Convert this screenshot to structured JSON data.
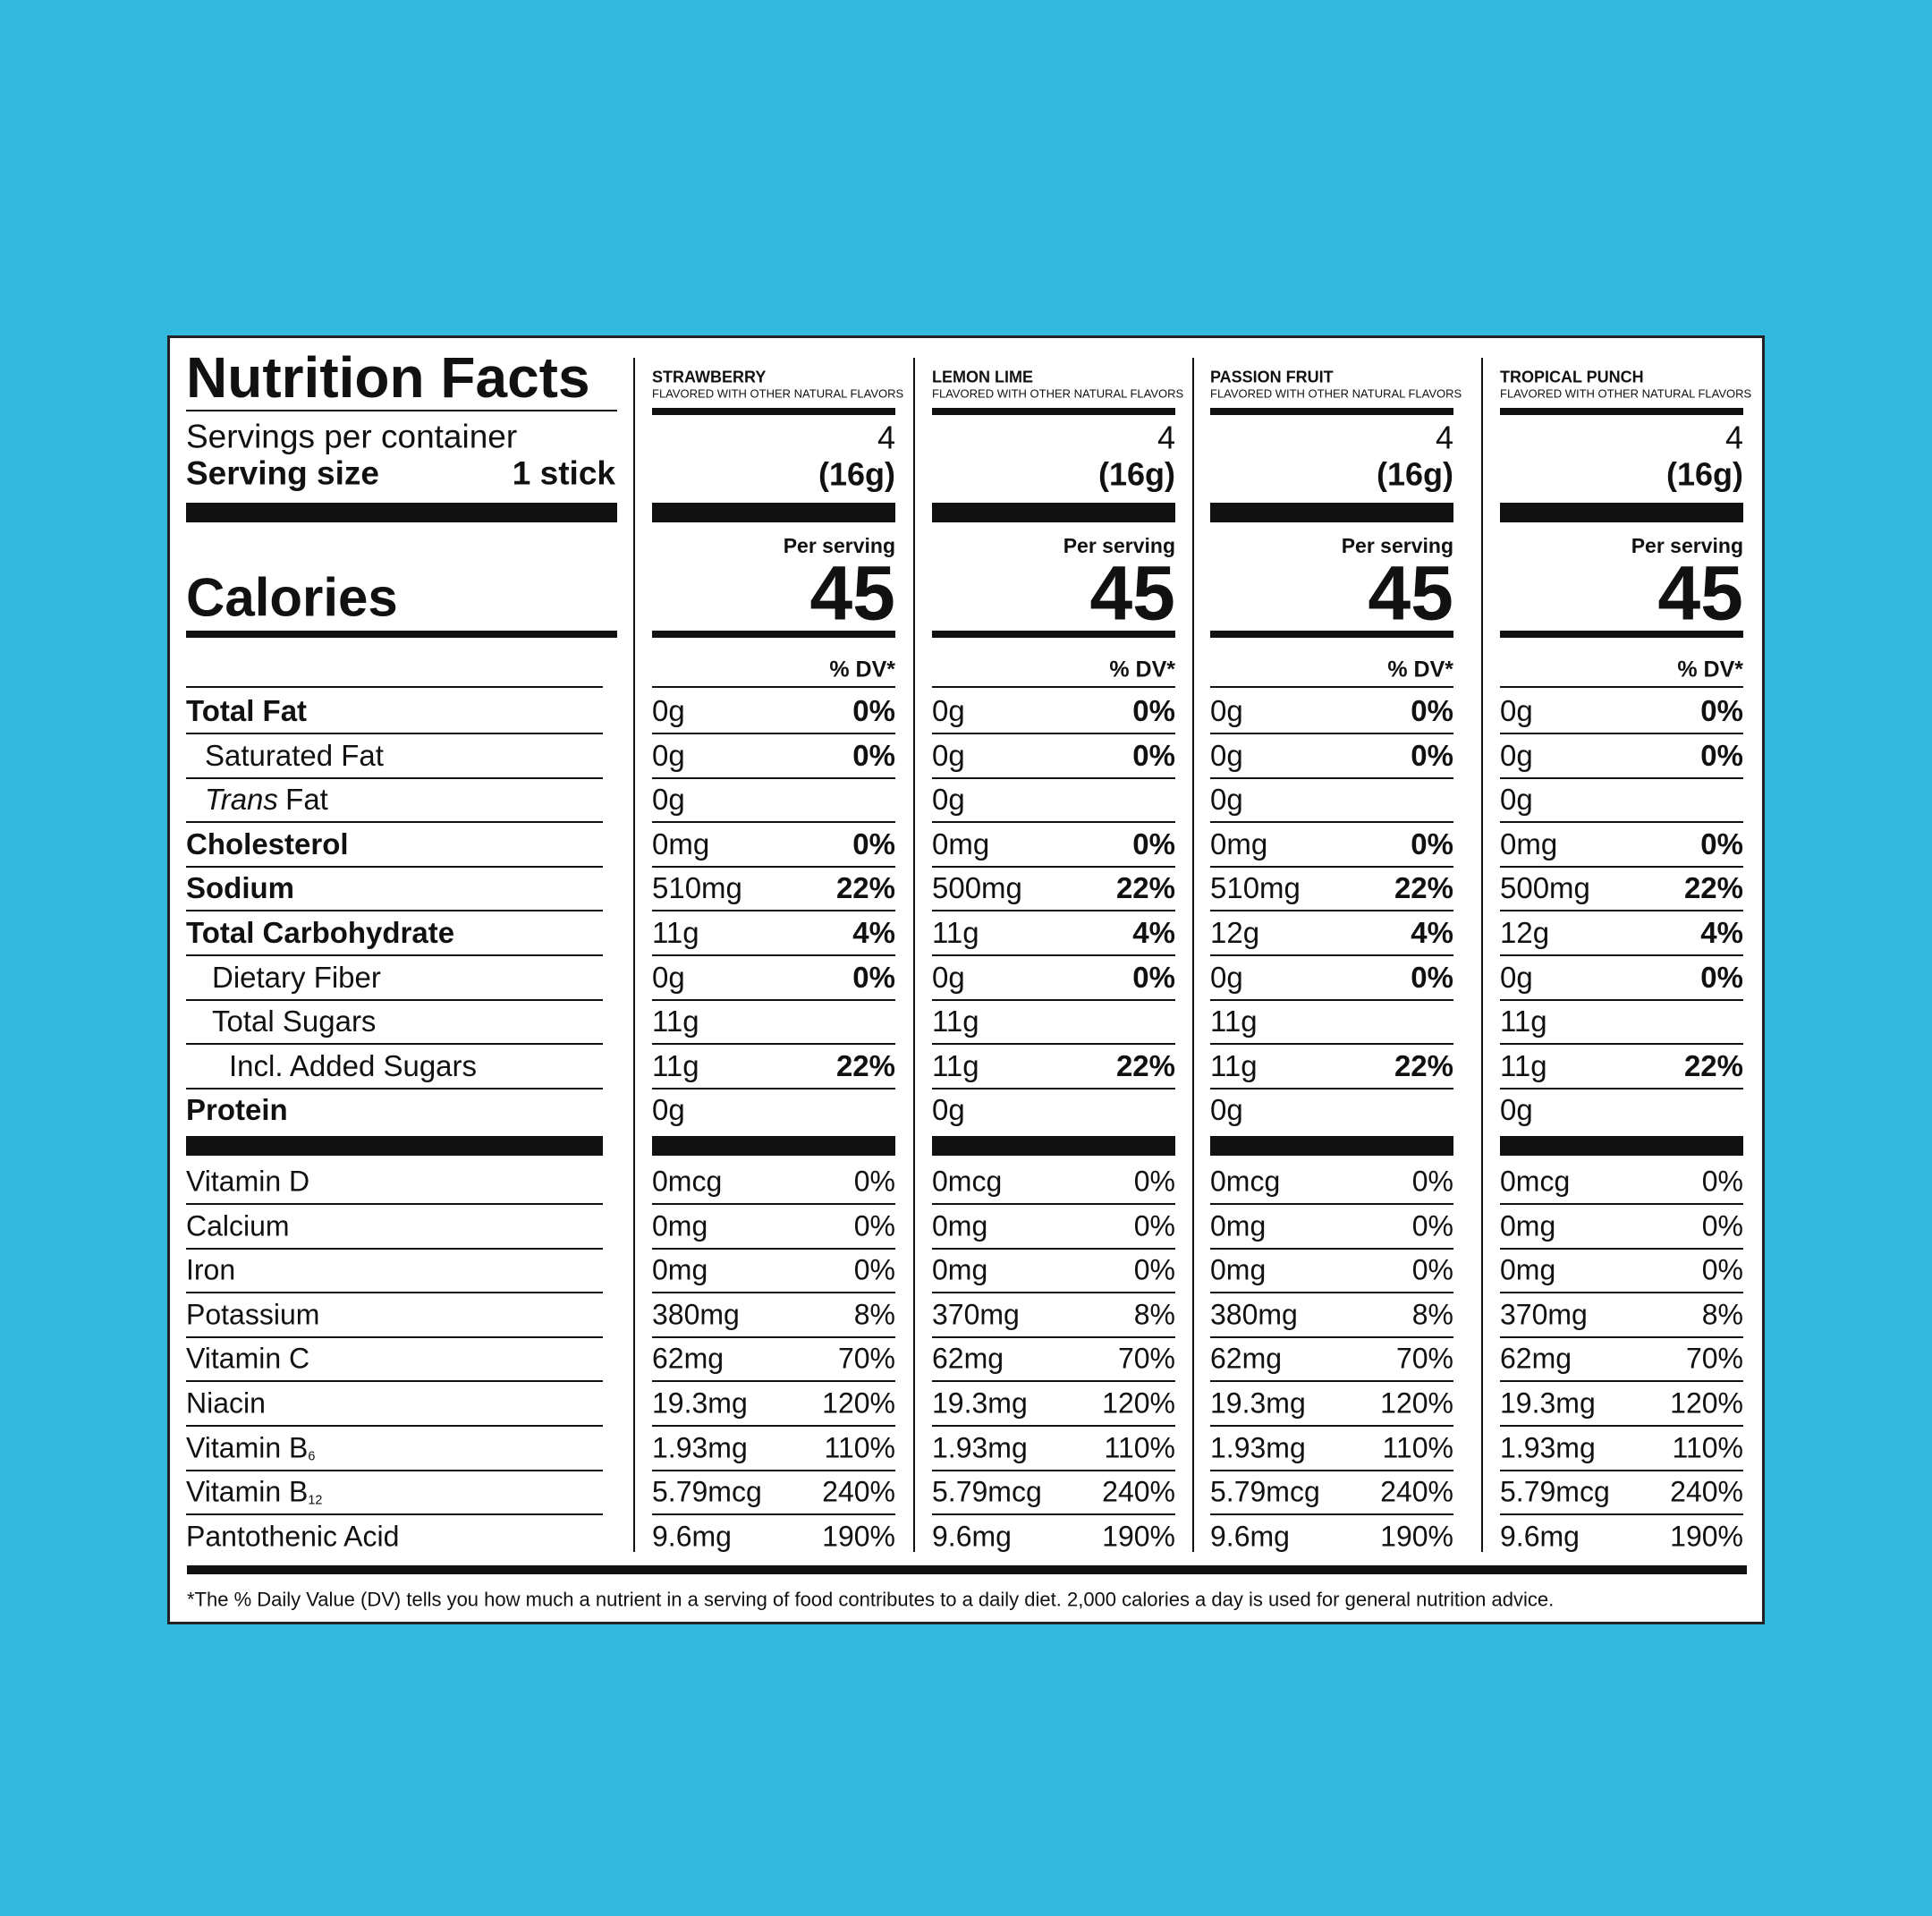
{
  "label": {
    "title": "Nutrition Facts",
    "servings_label": "Servings per container",
    "serving_size_label": "Serving size",
    "serving_size": "1 stick",
    "calories_label": "Calories",
    "nutrient_names": [
      "Total Fat",
      "Saturated Fat",
      {
        "italic": "Trans",
        "text": "Fat"
      },
      "Cholesterol",
      "Sodium",
      "Total Carbohydrate",
      "Dietary Fiber",
      "Total Sugars",
      "Incl. Added Sugars",
      "Protein"
    ],
    "vitamin_names": [
      "Vitamin D",
      "Calcium",
      "Iron",
      "Potassium",
      "Vitamin C",
      "Niacin",
      {
        "text": "Vitamin B",
        "sub": "6"
      },
      {
        "text": "Vitamin B",
        "sub": "12"
      },
      "Pantothenic Acid"
    ],
    "flavors": [
      {
        "name": "STRAWBERRY",
        "subtitle": "FLAVORED WITH OTHER NATURAL FLAVORS",
        "servings": "4",
        "weight": "(16g)",
        "per_serving": "Per serving",
        "calories": "45",
        "dv_header": "% DV*",
        "nutrients": [
          {
            "amount": "0g",
            "dv": "0%"
          },
          {
            "amount": "0g",
            "dv": "0%"
          },
          {
            "amount": "0g",
            "dv": null
          },
          {
            "amount": "0mg",
            "dv": "0%"
          },
          {
            "amount": "510mg",
            "dv": "22%"
          },
          {
            "amount": "11g",
            "dv": "4%"
          },
          {
            "amount": "0g",
            "dv": "0%"
          },
          {
            "amount": "11g",
            "dv": null
          },
          {
            "amount": "11g",
            "dv": "22%"
          },
          {
            "amount": "0g",
            "dv": null
          }
        ],
        "vitamins": [
          {
            "amount": "0mcg",
            "dv": "0%"
          },
          {
            "amount": "0mg",
            "dv": "0%"
          },
          {
            "amount": "0mg",
            "dv": "0%"
          },
          {
            "amount": "380mg",
            "dv": "8%"
          },
          {
            "amount": "62mg",
            "dv": "70%"
          },
          {
            "amount": "19.3mg",
            "dv": "120%"
          },
          {
            "amount": "1.93mg",
            "dv": "110%"
          },
          {
            "amount": "5.79mcg",
            "dv": "240%"
          },
          {
            "amount": "9.6mg",
            "dv": "190%"
          }
        ]
      },
      {
        "name": "LEMON LIME",
        "subtitle": "FLAVORED WITH OTHER NATURAL FLAVORS",
        "servings": "4",
        "weight": "(16g)",
        "per_serving": "Per serving",
        "calories": "45",
        "dv_header": "% DV*",
        "nutrients": [
          {
            "amount": "0g",
            "dv": "0%"
          },
          {
            "amount": "0g",
            "dv": "0%"
          },
          {
            "amount": "0g",
            "dv": null
          },
          {
            "amount": "0mg",
            "dv": "0%"
          },
          {
            "amount": "500mg",
            "dv": "22%"
          },
          {
            "amount": "11g",
            "dv": "4%"
          },
          {
            "amount": "0g",
            "dv": "0%"
          },
          {
            "amount": "11g",
            "dv": null
          },
          {
            "amount": "11g",
            "dv": "22%"
          },
          {
            "amount": "0g",
            "dv": null
          }
        ],
        "vitamins": [
          {
            "amount": "0mcg",
            "dv": "0%"
          },
          {
            "amount": "0mg",
            "dv": "0%"
          },
          {
            "amount": "0mg",
            "dv": "0%"
          },
          {
            "amount": "370mg",
            "dv": "8%"
          },
          {
            "amount": "62mg",
            "dv": "70%"
          },
          {
            "amount": "19.3mg",
            "dv": "120%"
          },
          {
            "amount": "1.93mg",
            "dv": "110%"
          },
          {
            "amount": "5.79mcg",
            "dv": "240%"
          },
          {
            "amount": "9.6mg",
            "dv": "190%"
          }
        ]
      },
      {
        "name": "PASSION FRUIT",
        "subtitle": "FLAVORED WITH OTHER NATURAL FLAVORS",
        "servings": "4",
        "weight": "(16g)",
        "per_serving": "Per serving",
        "calories": "45",
        "dv_header": "% DV*",
        "nutrients": [
          {
            "amount": "0g",
            "dv": "0%"
          },
          {
            "amount": "0g",
            "dv": "0%"
          },
          {
            "amount": "0g",
            "dv": null
          },
          {
            "amount": "0mg",
            "dv": "0%"
          },
          {
            "amount": "510mg",
            "dv": "22%"
          },
          {
            "amount": "12g",
            "dv": "4%"
          },
          {
            "amount": "0g",
            "dv": "0%"
          },
          {
            "amount": "11g",
            "dv": null
          },
          {
            "amount": "11g",
            "dv": "22%"
          },
          {
            "amount": "0g",
            "dv": null
          }
        ],
        "vitamins": [
          {
            "amount": "0mcg",
            "dv": "0%"
          },
          {
            "amount": "0mg",
            "dv": "0%"
          },
          {
            "amount": "0mg",
            "dv": "0%"
          },
          {
            "amount": "380mg",
            "dv": "8%"
          },
          {
            "amount": "62mg",
            "dv": "70%"
          },
          {
            "amount": "19.3mg",
            "dv": "120%"
          },
          {
            "amount": "1.93mg",
            "dv": "110%"
          },
          {
            "amount": "5.79mcg",
            "dv": "240%"
          },
          {
            "amount": "9.6mg",
            "dv": "190%"
          }
        ]
      },
      {
        "name": "TROPICAL PUNCH",
        "subtitle": "FLAVORED WITH OTHER NATURAL FLAVORS",
        "servings": "4",
        "weight": "(16g)",
        "per_serving": "Per serving",
        "calories": "45",
        "dv_header": "% DV*",
        "nutrients": [
          {
            "amount": "0g",
            "dv": "0%"
          },
          {
            "amount": "0g",
            "dv": "0%"
          },
          {
            "amount": "0g",
            "dv": null
          },
          {
            "amount": "0mg",
            "dv": "0%"
          },
          {
            "amount": "500mg",
            "dv": "22%"
          },
          {
            "amount": "12g",
            "dv": "4%"
          },
          {
            "amount": "0g",
            "dv": "0%"
          },
          {
            "amount": "11g",
            "dv": null
          },
          {
            "amount": "11g",
            "dv": "22%"
          },
          {
            "amount": "0g",
            "dv": null
          }
        ],
        "vitamins": [
          {
            "amount": "0mcg",
            "dv": "0%"
          },
          {
            "amount": "0mg",
            "dv": "0%"
          },
          {
            "amount": "0mg",
            "dv": "0%"
          },
          {
            "amount": "370mg",
            "dv": "8%"
          },
          {
            "amount": "62mg",
            "dv": "70%"
          },
          {
            "amount": "19.3mg",
            "dv": "120%"
          },
          {
            "amount": "1.93mg",
            "dv": "110%"
          },
          {
            "amount": "5.79mcg",
            "dv": "240%"
          },
          {
            "amount": "9.6mg",
            "dv": "190%"
          }
        ]
      }
    ],
    "footnote": "*The % Daily Value (DV) tells you how much a nutrient in a serving of food contributes to a daily diet. 2,000 calories a day is used for general nutrition advice."
  }
}
